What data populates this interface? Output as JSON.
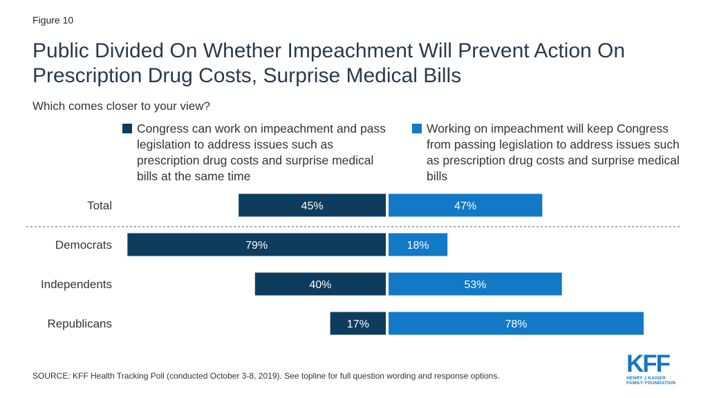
{
  "figure_label": "Figure 10",
  "chart_data": {
    "type": "bar",
    "orientation": "horizontal-diverging",
    "title": "Public Divided On Whether Impeachment Will Prevent Action On Prescription Drug Costs, Surprise Medical Bills",
    "subtitle": "Which comes closer to your view?",
    "categories": [
      "Total",
      "Democrats",
      "Independents",
      "Republicans"
    ],
    "value_suffix": "%",
    "separator_after_category": "Total",
    "series": [
      {
        "name": "Congress can work on impeachment and pass legislation to address issues such as prescription drug costs and surprise medical bills at the same time",
        "color": "#0e3c5e",
        "side": "left",
        "values": [
          45,
          79,
          40,
          17
        ]
      },
      {
        "name": "Working on impeachment will keep Congress from passing legislation to address issues such as prescription drug costs and surprise medical bills",
        "color": "#1279c6",
        "side": "right",
        "values": [
          47,
          18,
          53,
          78
        ]
      }
    ],
    "legend_position": "top",
    "grid": false
  },
  "source": "SOURCE: KFF Health Tracking Poll (conducted October 3-8, 2019). See topline for full question wording and response options.",
  "logo": {
    "text": "KFF",
    "org_line1": "HENRY J KAISER",
    "org_line2": "FAMILY FOUNDATION"
  }
}
